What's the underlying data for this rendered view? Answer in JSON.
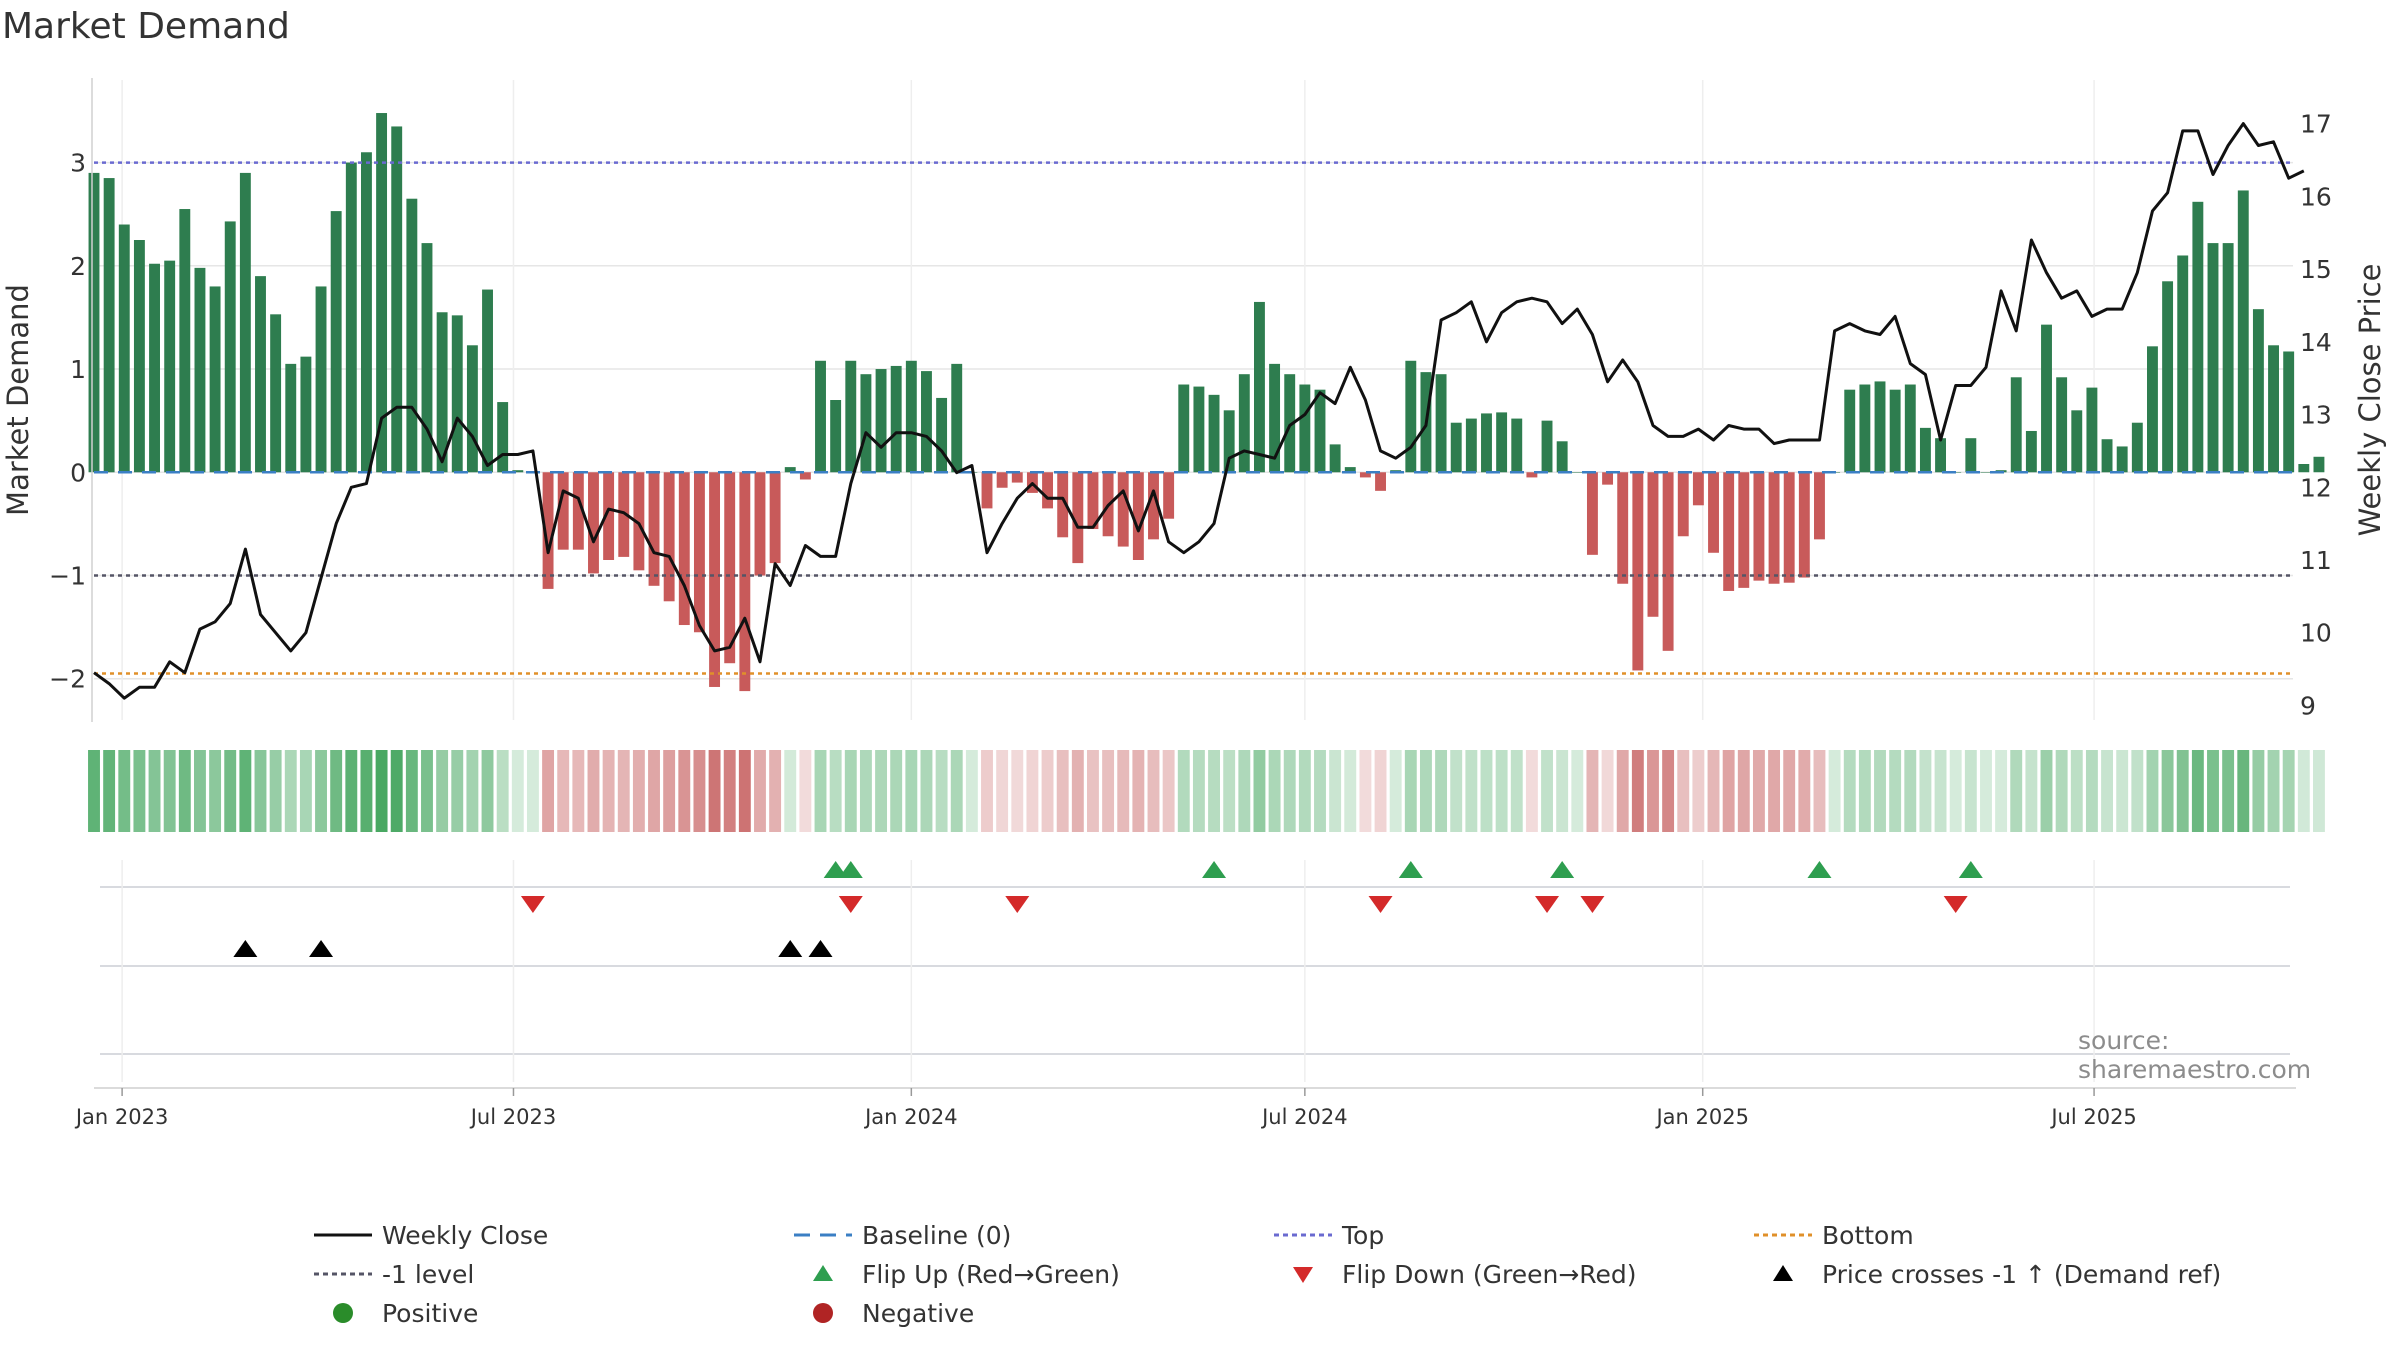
{
  "chart_title": "Market Demand",
  "source_note": "source: sharemaestro.com",
  "colors": {
    "positive_bar": "#2e7d4f",
    "negative_bar": "#c85a5a",
    "price_line": "#111111",
    "baseline": "#3b7fc4",
    "top_line": "#6a6ad0",
    "bottom_line": "#e0902a",
    "minus1_line": "#555566",
    "flip_up": "#2e9e4f",
    "flip_down": "#d42a2a",
    "cross_marker": "#000000",
    "positive_dot": "#2a8c2a",
    "negative_dot": "#b02424",
    "source_text": "#8c8c8c"
  },
  "legend": {
    "weekly_close": "Weekly Close",
    "baseline": "Baseline (0)",
    "top": "Top",
    "bottom": "Bottom",
    "minus1": "-1 level",
    "flip_up": "Flip Up (Red→Green)",
    "flip_down": "Flip Down (Green→Red)",
    "cross": "Price crosses -1 ↑ (Demand ref)",
    "positive": "Positive",
    "negative": "Negative"
  },
  "chart_data": {
    "type": "bar",
    "title": "Market Demand",
    "ylabel": "Market Demand",
    "y2label": "Weekly Close Price",
    "ylim": [
      -2.4,
      3.8
    ],
    "y2lim": [
      8.8,
      17.6
    ],
    "yticks": [
      -2,
      -1,
      0,
      1,
      2,
      3
    ],
    "ytick_labels": [
      "−2",
      "−1",
      "0",
      "1",
      "2",
      "3"
    ],
    "y2ticks": [
      9,
      10,
      11,
      12,
      13,
      14,
      15,
      16,
      17
    ],
    "xlim": [
      "2022-12-19",
      "2025-10-01"
    ],
    "xticks": [
      "2023-01-01",
      "2023-07-01",
      "2024-01-01",
      "2024-07-01",
      "2025-01-01",
      "2025-07-01"
    ],
    "xtick_labels": [
      "Jan 2023",
      "Jul 2023",
      "Jan 2024",
      "Jul 2024",
      "Jan 2025",
      "Jul 2025"
    ],
    "reference_lines": {
      "top": 3.0,
      "minus1": -1.0,
      "bottom": -1.95,
      "baseline": 0
    },
    "legend_position": "bottom",
    "start_week": "2022-12-19",
    "series": [
      {
        "name": "Market Demand",
        "kind": "bar",
        "values": [
          2.9,
          2.85,
          2.4,
          2.25,
          2.02,
          2.05,
          2.55,
          1.98,
          1.8,
          2.43,
          2.9,
          1.9,
          1.53,
          1.05,
          1.12,
          1.8,
          2.53,
          3.0,
          3.1,
          3.48,
          3.35,
          2.65,
          2.22,
          1.55,
          1.52,
          1.23,
          1.77,
          0.68,
          0.02,
          0.0,
          -1.13,
          -0.75,
          -0.75,
          -0.98,
          -0.85,
          -0.82,
          -0.95,
          -1.1,
          -1.25,
          -1.48,
          -1.55,
          -2.08,
          -1.85,
          -2.12,
          -1.0,
          -0.88,
          0.05,
          -0.07,
          1.08,
          0.7,
          1.08,
          0.95,
          1.0,
          1.03,
          1.08,
          0.98,
          0.72,
          1.05,
          0.0,
          -0.35,
          -0.15,
          -0.1,
          -0.2,
          -0.35,
          -0.63,
          -0.88,
          -0.55,
          -0.62,
          -0.72,
          -0.85,
          -0.65,
          -0.45,
          0.85,
          0.83,
          0.75,
          0.6,
          0.95,
          1.65,
          1.05,
          0.95,
          0.85,
          0.8,
          0.27,
          0.05,
          -0.05,
          -0.18,
          0.02,
          1.08,
          0.97,
          0.95,
          0.48,
          0.52,
          0.57,
          0.58,
          0.52,
          -0.05,
          0.5,
          0.3,
          0.0,
          -0.8,
          -0.12,
          -1.08,
          -1.92,
          -1.4,
          -1.73,
          -0.62,
          -0.32,
          -0.78,
          -1.15,
          -1.12,
          -1.05,
          -1.08,
          -1.07,
          -1.02,
          -0.65,
          0.0,
          0.8,
          0.85,
          0.88,
          0.8,
          0.85,
          0.43,
          0.33,
          0.0,
          0.33,
          0.0,
          0.02,
          0.92,
          0.4,
          1.43,
          0.92,
          0.6,
          0.82,
          0.32,
          0.25,
          0.48,
          1.22,
          1.85,
          2.1,
          2.62,
          2.22,
          2.22,
          2.73,
          1.58,
          1.23,
          1.17,
          0.08,
          0.15
        ]
      },
      {
        "name": "Weekly Close",
        "kind": "line",
        "axis": "right",
        "values": [
          9.45,
          9.3,
          9.1,
          9.25,
          9.25,
          9.6,
          9.45,
          10.05,
          10.15,
          10.4,
          11.15,
          10.25,
          10.0,
          9.75,
          10.0,
          10.75,
          11.5,
          12.0,
          12.05,
          12.95,
          13.1,
          13.1,
          12.8,
          12.35,
          12.95,
          12.7,
          12.3,
          12.45,
          12.45,
          12.5,
          11.1,
          11.95,
          11.85,
          11.25,
          11.7,
          11.65,
          11.5,
          11.1,
          11.05,
          10.65,
          10.1,
          9.75,
          9.8,
          10.2,
          9.6,
          10.95,
          10.65,
          11.2,
          11.05,
          11.05,
          12.05,
          12.75,
          12.55,
          12.75,
          12.75,
          12.7,
          12.5,
          12.2,
          12.3,
          11.1,
          11.5,
          11.85,
          12.05,
          11.85,
          11.85,
          11.45,
          11.45,
          11.75,
          11.95,
          11.4,
          11.95,
          11.25,
          11.1,
          11.25,
          11.5,
          12.4,
          12.5,
          12.45,
          12.4,
          12.85,
          13.0,
          13.3,
          13.15,
          13.65,
          13.2,
          12.5,
          12.4,
          12.55,
          12.85,
          14.3,
          14.4,
          14.55,
          14.0,
          14.4,
          14.55,
          14.6,
          14.55,
          14.25,
          14.45,
          14.1,
          13.45,
          13.75,
          13.45,
          12.85,
          12.7,
          12.7,
          12.8,
          12.65,
          12.85,
          12.8,
          12.8,
          12.6,
          12.65,
          12.65,
          12.65,
          14.15,
          14.25,
          14.15,
          14.1,
          14.35,
          13.7,
          13.55,
          12.65,
          13.4,
          13.4,
          13.65,
          14.7,
          14.15,
          15.4,
          14.95,
          14.6,
          14.7,
          14.35,
          14.45,
          14.45,
          14.95,
          15.8,
          16.05,
          16.9,
          16.9,
          16.3,
          16.7,
          17.0,
          16.7,
          16.75,
          16.25,
          16.35
        ]
      }
    ],
    "flip_up_weeks": [
      49,
      50,
      74,
      87,
      97,
      114,
      124
    ],
    "flip_down_weeks": [
      29,
      50,
      61,
      85,
      96,
      99,
      123
    ],
    "price_cross_weeks": [
      10,
      15,
      46,
      48
    ]
  }
}
